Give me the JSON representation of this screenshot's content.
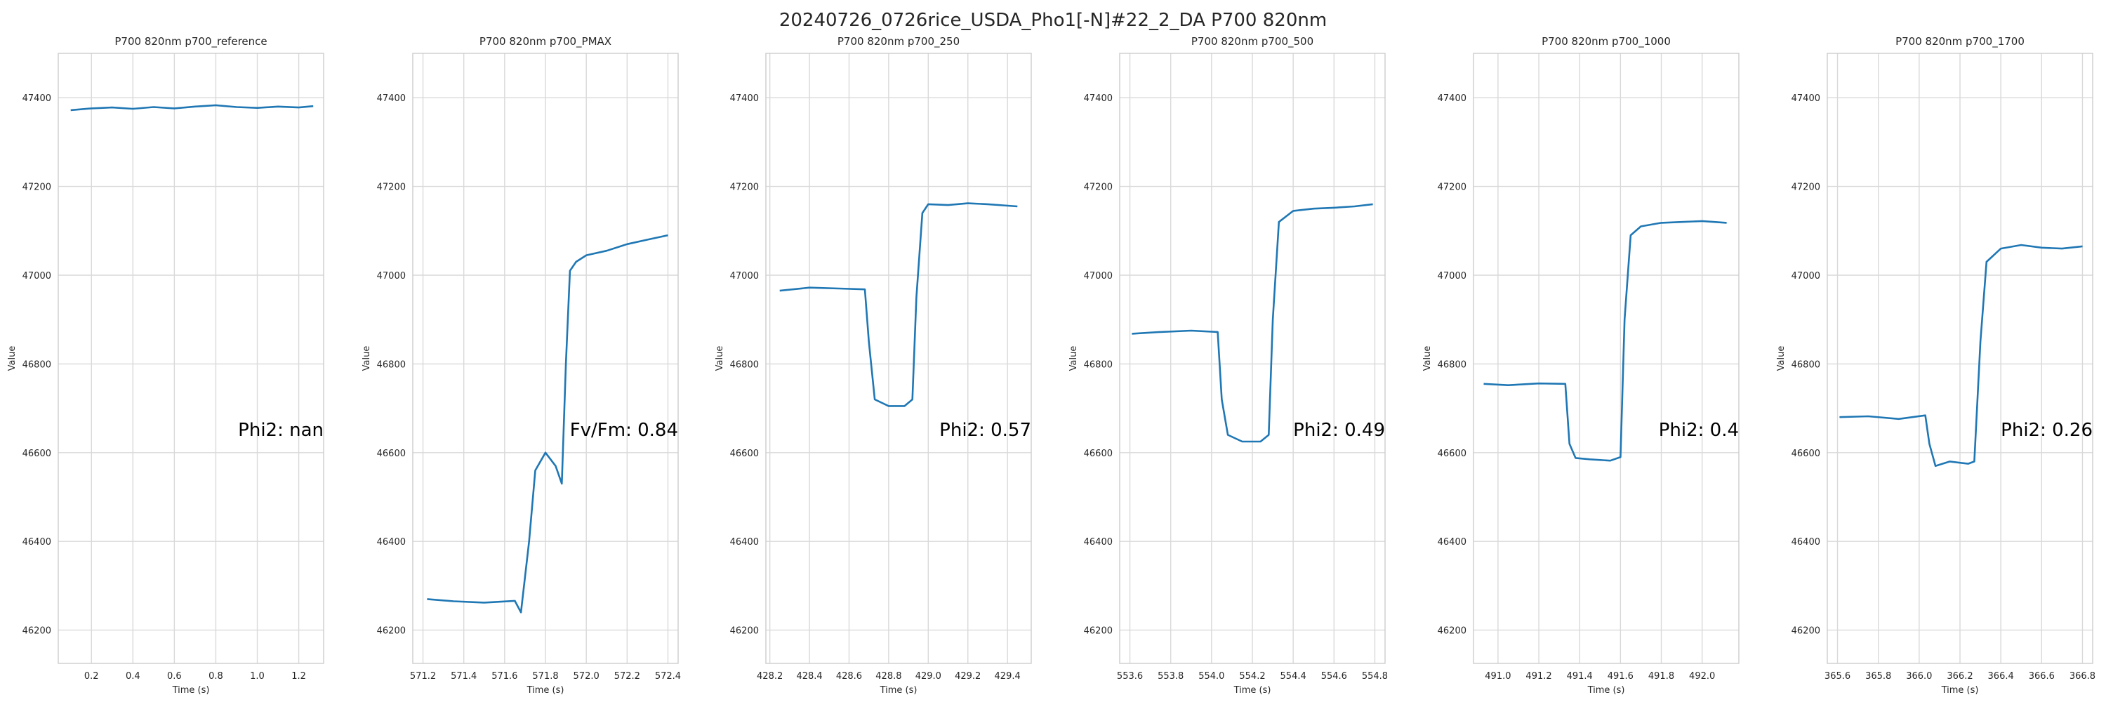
{
  "figure": {
    "title": "20240726_0726rice_USDA_Pho1[-N]#22_2_DA P700 820nm"
  },
  "chart_data": [
    {
      "type": "line",
      "title": "P700 820nm p700_reference",
      "xlabel": "Time (s)",
      "ylabel": "Value",
      "xlim": [
        0.04,
        1.32
      ],
      "ylim": [
        46125,
        47500
      ],
      "xticks": [
        "0.2",
        "0.4",
        "0.6",
        "0.8",
        "1.0",
        "1.2"
      ],
      "yticks": [
        "46200",
        "46400",
        "46600",
        "46800",
        "47000",
        "47200",
        "47400"
      ],
      "annotation": "Phi2: nan",
      "color": "#1f77b4",
      "series": [
        {
          "x": [
            0.1,
            0.2,
            0.3,
            0.4,
            0.5,
            0.6,
            0.7,
            0.8,
            0.9,
            1.0,
            1.1,
            1.2,
            1.27
          ],
          "y": [
            47372,
            47376,
            47378,
            47375,
            47379,
            47376,
            47380,
            47383,
            47379,
            47377,
            47380,
            47378,
            47381
          ]
        }
      ]
    },
    {
      "type": "line",
      "title": "P700 820nm p700_PMAX",
      "xlabel": "Time (s)",
      "ylabel": "Value",
      "xlim": [
        571.15,
        572.45
      ],
      "ylim": [
        46125,
        47500
      ],
      "xticks": [
        "571.2",
        "571.4",
        "571.6",
        "571.8",
        "572.0",
        "572.2",
        "572.4"
      ],
      "yticks": [
        "46200",
        "46400",
        "46600",
        "46800",
        "47000",
        "47200",
        "47400"
      ],
      "annotation": "Fv/Fm: 0.84",
      "color": "#1f77b4",
      "series": [
        {
          "x": [
            571.22,
            571.35,
            571.5,
            571.65,
            571.68,
            571.72,
            571.75,
            571.8,
            571.85,
            571.88,
            571.9,
            571.92,
            571.95,
            572.0,
            572.1,
            572.2,
            572.3,
            572.4
          ],
          "y": [
            46270,
            46265,
            46262,
            46266,
            46240,
            46400,
            46560,
            46600,
            46570,
            46530,
            46800,
            47010,
            47030,
            47045,
            47055,
            47070,
            47080,
            47090
          ]
        }
      ]
    },
    {
      "type": "line",
      "title": "P700 820nm p700_250",
      "xlabel": "Time (s)",
      "ylabel": "Value",
      "xlim": [
        428.18,
        429.52
      ],
      "ylim": [
        46125,
        47500
      ],
      "xticks": [
        "428.2",
        "428.4",
        "428.6",
        "428.8",
        "429.0",
        "429.2",
        "429.4"
      ],
      "yticks": [
        "46200",
        "46400",
        "46600",
        "46800",
        "47000",
        "47200",
        "47400"
      ],
      "annotation": "Phi2: 0.57",
      "color": "#1f77b4",
      "series": [
        {
          "x": [
            428.25,
            428.4,
            428.55,
            428.68,
            428.7,
            428.73,
            428.8,
            428.88,
            428.92,
            428.94,
            428.97,
            429.0,
            429.1,
            429.2,
            429.3,
            429.45
          ],
          "y": [
            46965,
            46972,
            46970,
            46968,
            46850,
            46720,
            46705,
            46705,
            46720,
            46950,
            47140,
            47160,
            47158,
            47162,
            47160,
            47155
          ]
        }
      ]
    },
    {
      "type": "line",
      "title": "P700 820nm p700_500",
      "xlabel": "Time (s)",
      "ylabel": "Value",
      "xlim": [
        553.55,
        554.85
      ],
      "ylim": [
        46125,
        47500
      ],
      "xticks": [
        "553.6",
        "553.8",
        "554.0",
        "554.2",
        "554.4",
        "554.6",
        "554.8"
      ],
      "yticks": [
        "46200",
        "46400",
        "46600",
        "46800",
        "47000",
        "47200",
        "47400"
      ],
      "annotation": "Phi2: 0.49",
      "color": "#1f77b4",
      "series": [
        {
          "x": [
            553.61,
            553.75,
            553.9,
            554.03,
            554.05,
            554.08,
            554.15,
            554.24,
            554.28,
            554.3,
            554.33,
            554.4,
            554.5,
            554.6,
            554.7,
            554.79
          ],
          "y": [
            46868,
            46872,
            46875,
            46872,
            46720,
            46640,
            46625,
            46625,
            46640,
            46900,
            47120,
            47145,
            47150,
            47152,
            47155,
            47160
          ]
        }
      ]
    },
    {
      "type": "line",
      "title": "P700 820nm p700_1000",
      "xlabel": "Time (s)",
      "ylabel": "Value",
      "xlim": [
        490.88,
        492.18
      ],
      "ylim": [
        46125,
        47500
      ],
      "xticks": [
        "491.0",
        "491.2",
        "491.4",
        "491.6",
        "491.8",
        "492.0"
      ],
      "yticks": [
        "46200",
        "46400",
        "46600",
        "46800",
        "47000",
        "47200",
        "47400"
      ],
      "annotation": "Phi2: 0.4",
      "color": "#1f77b4",
      "series": [
        {
          "x": [
            490.93,
            491.05,
            491.2,
            491.33,
            491.35,
            491.38,
            491.45,
            491.55,
            491.6,
            491.62,
            491.65,
            491.7,
            491.8,
            491.9,
            492.0,
            492.12
          ],
          "y": [
            46755,
            46752,
            46756,
            46755,
            46620,
            46588,
            46585,
            46582,
            46590,
            46900,
            47090,
            47110,
            47118,
            47120,
            47122,
            47118
          ]
        }
      ]
    },
    {
      "type": "line",
      "title": "P700 820nm p700_1700",
      "xlabel": "Time (s)",
      "ylabel": "Value",
      "xlim": [
        365.55,
        366.85
      ],
      "ylim": [
        46125,
        47500
      ],
      "xticks": [
        "365.6",
        "365.8",
        "366.0",
        "366.2",
        "366.4",
        "366.6",
        "366.8"
      ],
      "yticks": [
        "46200",
        "46400",
        "46600",
        "46800",
        "47000",
        "47200",
        "47400"
      ],
      "annotation": "Phi2: 0.26",
      "color": "#1f77b4",
      "series": [
        {
          "x": [
            365.61,
            365.75,
            365.9,
            366.03,
            366.05,
            366.08,
            366.15,
            366.24,
            366.27,
            366.3,
            366.33,
            366.4,
            366.5,
            366.6,
            366.7,
            366.8
          ],
          "y": [
            46680,
            46682,
            46676,
            46684,
            46620,
            46570,
            46580,
            46575,
            46580,
            46850,
            47030,
            47060,
            47068,
            47062,
            47060,
            47065
          ]
        }
      ]
    }
  ]
}
